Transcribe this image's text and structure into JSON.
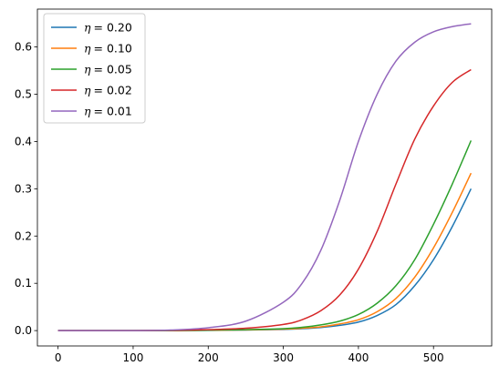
{
  "chart_data": {
    "type": "line",
    "title": "",
    "xlabel": "",
    "ylabel": "",
    "xlim": [
      -27.5,
      577.5
    ],
    "ylim": [
      -0.0325,
      0.68
    ],
    "xticks": [
      "0",
      "100",
      "200",
      "300",
      "400",
      "500"
    ],
    "xtick_values": [
      0,
      100,
      200,
      300,
      400,
      500
    ],
    "yticks": [
      "0.0",
      "0.1",
      "0.2",
      "0.3",
      "0.4",
      "0.5",
      "0.6"
    ],
    "ytick_values": [
      0,
      0.1,
      0.2,
      0.3,
      0.4,
      0.5,
      0.6
    ],
    "grid": false,
    "legend_position": "top-left",
    "x": [
      0,
      50,
      100,
      150,
      200,
      250,
      300,
      325,
      350,
      375,
      400,
      425,
      450,
      475,
      500,
      525,
      550
    ],
    "series": [
      {
        "name": "η = 0.20",
        "legend_symbol": "η",
        "legend_value": "= 0.20",
        "color": "#1f77b4",
        "values": [
          0.0,
          0.0,
          0.0,
          0.0,
          0.0005,
          0.0012,
          0.0025,
          0.004,
          0.0065,
          0.011,
          0.018,
          0.032,
          0.055,
          0.095,
          0.15,
          0.22,
          0.3
        ]
      },
      {
        "name": "η = 0.10",
        "legend_symbol": "η",
        "legend_value": "= 0.10",
        "color": "#ff7f0e",
        "values": [
          0.0,
          0.0,
          0.0,
          0.0,
          0.0006,
          0.0014,
          0.003,
          0.005,
          0.008,
          0.014,
          0.023,
          0.04,
          0.068,
          0.113,
          0.175,
          0.25,
          0.333
        ]
      },
      {
        "name": "η = 0.05",
        "legend_symbol": "η",
        "legend_value": "= 0.05",
        "color": "#2ca02c",
        "values": [
          0.0,
          0.0,
          0.0,
          0.0,
          0.0008,
          0.002,
          0.004,
          0.007,
          0.012,
          0.02,
          0.034,
          0.058,
          0.095,
          0.15,
          0.225,
          0.31,
          0.402
        ]
      },
      {
        "name": "η = 0.02",
        "legend_symbol": "η",
        "legend_value": "= 0.02",
        "color": "#d62728",
        "values": [
          0.0,
          0.0,
          0.0,
          0.0005,
          0.002,
          0.005,
          0.013,
          0.023,
          0.042,
          0.075,
          0.13,
          0.21,
          0.31,
          0.405,
          0.475,
          0.525,
          0.552
        ]
      },
      {
        "name": "η = 0.01",
        "legend_symbol": "η",
        "legend_value": "= 0.01",
        "color": "#9467bd",
        "values": [
          0.0,
          0.0,
          0.0,
          0.0012,
          0.006,
          0.02,
          0.06,
          0.1,
          0.17,
          0.275,
          0.4,
          0.5,
          0.57,
          0.61,
          0.632,
          0.643,
          0.649
        ]
      }
    ]
  }
}
